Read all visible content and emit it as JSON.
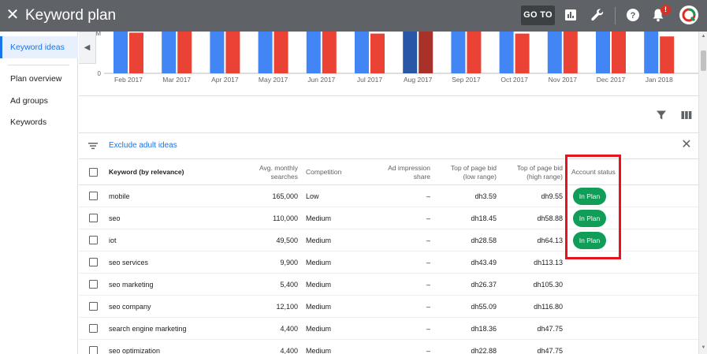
{
  "header": {
    "close_icon": "close-icon",
    "title": "Keyword plan",
    "goto_label": "GO TO",
    "icons": [
      "reports-icon",
      "tools-wrench-icon",
      "help-icon",
      "notifications-bell-icon"
    ],
    "notification_badge": "!",
    "colors": {
      "bar": "#5f6368",
      "goto_bg": "#3c4043",
      "badge": "#d93025"
    }
  },
  "sidebar": {
    "items": [
      {
        "label": "Keyword ideas",
        "active": true
      },
      {
        "label": "Plan overview",
        "active": false
      },
      {
        "label": "Ad groups",
        "active": false
      },
      {
        "label": "Keywords",
        "active": false
      }
    ]
  },
  "chart_data": {
    "type": "bar",
    "categories": [
      "Feb 2017",
      "Mar 2017",
      "Apr 2017",
      "May 2017",
      "Jun 2017",
      "Jul 2017",
      "Aug 2017",
      "Sep 2017",
      "Oct 2017",
      "Nov 2017",
      "Dec 2017",
      "Jan 2018"
    ],
    "y_tick_labels": [
      "0",
      "M"
    ],
    "highlighted_category": "Aug 2017",
    "series": [
      {
        "color": "#4285f4",
        "values": [
          1.0,
          1.0,
          1.0,
          1.0,
          1.0,
          1.0,
          1.0,
          1.0,
          1.0,
          1.0,
          1.0,
          1.0
        ]
      },
      {
        "color": "#ea4335",
        "values": [
          0.86,
          1.0,
          0.98,
          0.96,
          0.92,
          0.84,
          0.92,
          1.0,
          0.84,
          1.0,
          0.92,
          0.78
        ]
      }
    ],
    "highlight_colors": {
      "blue": "#2a56a8",
      "red": "#a8322a"
    },
    "note": "bars cropped at top; values are relative visible heights"
  },
  "toolbar": {
    "icons": [
      "filter-icon",
      "columns-icon"
    ]
  },
  "filter": {
    "icon": "filter-list-icon",
    "label": "Exclude adult ideas",
    "close_icon": "close-icon"
  },
  "table": {
    "headers": {
      "keyword": "Keyword (by relevance)",
      "avg_line1": "Avg. monthly",
      "avg_line2": "searches",
      "competition": "Competition",
      "impr_line1": "Ad impression",
      "impr_line2": "share",
      "low_line1": "Top of page bid",
      "low_line2": "(low range)",
      "high_line1": "Top of page bid",
      "high_line2": "(high range)",
      "status": "Account status"
    },
    "rows": [
      {
        "keyword": "mobile",
        "searches": "165,000",
        "competition": "Low",
        "impr": "–",
        "low": "dh3.59",
        "high": "dh9.55",
        "status": "In Plan"
      },
      {
        "keyword": "seo",
        "searches": "110,000",
        "competition": "Medium",
        "impr": "–",
        "low": "dh18.45",
        "high": "dh58.88",
        "status": "In Plan"
      },
      {
        "keyword": "iot",
        "searches": "49,500",
        "competition": "Medium",
        "impr": "–",
        "low": "dh28.58",
        "high": "dh64.13",
        "status": "In Plan"
      },
      {
        "keyword": "seo services",
        "searches": "9,900",
        "competition": "Medium",
        "impr": "–",
        "low": "dh43.49",
        "high": "dh113.13",
        "status": ""
      },
      {
        "keyword": "seo marketing",
        "searches": "5,400",
        "competition": "Medium",
        "impr": "–",
        "low": "dh26.37",
        "high": "dh105.30",
        "status": ""
      },
      {
        "keyword": "seo company",
        "searches": "12,100",
        "competition": "Medium",
        "impr": "–",
        "low": "dh55.09",
        "high": "dh116.80",
        "status": ""
      },
      {
        "keyword": "search engine marketing",
        "searches": "4,400",
        "competition": "Medium",
        "impr": "–",
        "low": "dh18.36",
        "high": "dh47.75",
        "status": ""
      },
      {
        "keyword": "seo optimization",
        "searches": "4,400",
        "competition": "Medium",
        "impr": "–",
        "low": "dh22.88",
        "high": "dh47.75",
        "status": ""
      }
    ],
    "status_color": "#0f9d58",
    "highlight_color": "#e5131e"
  }
}
